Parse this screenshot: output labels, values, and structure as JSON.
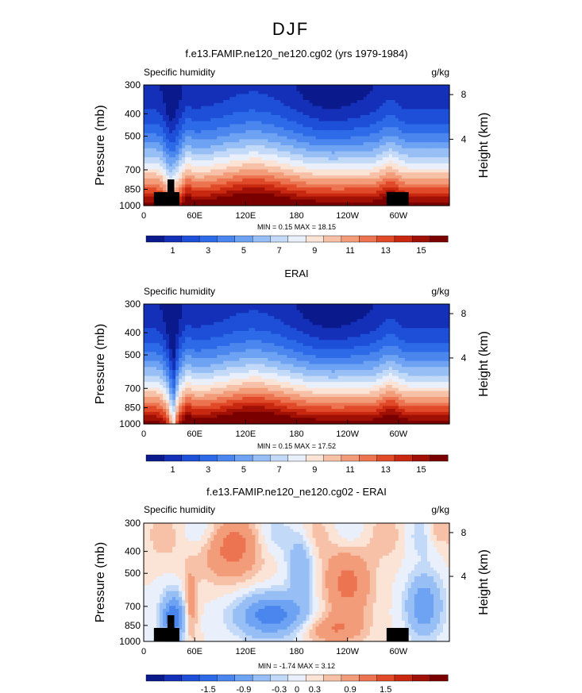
{
  "figure_title": "DJF",
  "chart_data": [
    {
      "type": "heatmap",
      "title": "f.e13.FAMIP.ne120_ne120.cg02 (yrs 1979-1984)",
      "left_label": "Specific humidity",
      "unit_label": "g/kg",
      "ylabel": "Pressure (mb)",
      "ylabel_right": "Height (km)",
      "y_ticks": [
        300,
        400,
        500,
        700,
        850,
        1000
      ],
      "y_ticks_right": [
        8,
        4
      ],
      "x_ticks": [
        "0",
        "60E",
        "120E",
        "180",
        "120W",
        "60W"
      ],
      "min_max_text": "MIN =    0.15   MAX =   18.15",
      "min": 0.15,
      "max": 18.15,
      "colorbar_labels": [
        "1",
        "3",
        "5",
        "7",
        "9",
        "11",
        "13",
        "15"
      ],
      "colorbar_levels": [
        0,
        1,
        2,
        3,
        4,
        5,
        6,
        7,
        8,
        9,
        10,
        11,
        12,
        13,
        14,
        15,
        16
      ],
      "field": "absolute",
      "surface_mask": true
    },
    {
      "type": "heatmap",
      "title": "ERAI",
      "left_label": "Specific humidity",
      "unit_label": "g/kg",
      "ylabel": "Pressure (mb)",
      "ylabel_right": "Height (km)",
      "y_ticks": [
        300,
        400,
        500,
        700,
        850,
        1000
      ],
      "y_ticks_right": [
        8,
        4
      ],
      "x_ticks": [
        "0",
        "60E",
        "120E",
        "180",
        "120W",
        "60W"
      ],
      "min_max_text": "MIN =    0.15   MAX =   17.52",
      "min": 0.15,
      "max": 17.52,
      "colorbar_labels": [
        "1",
        "3",
        "5",
        "7",
        "9",
        "11",
        "13",
        "15"
      ],
      "colorbar_levels": [
        0,
        1,
        2,
        3,
        4,
        5,
        6,
        7,
        8,
        9,
        10,
        11,
        12,
        13,
        14,
        15,
        16
      ],
      "field": "absolute",
      "surface_mask": false
    },
    {
      "type": "heatmap",
      "title": "f.e13.FAMIP.ne120_ne120.cg02 - ERAI",
      "left_label": "Specific humidity",
      "unit_label": "g/kg",
      "ylabel": "Pressure (mb)",
      "ylabel_right": "Height (km)",
      "y_ticks": [
        300,
        400,
        500,
        700,
        850,
        1000
      ],
      "y_ticks_right": [
        8,
        4
      ],
      "x_ticks": [
        "0",
        "60E",
        "120E",
        "180",
        "120W",
        "60W"
      ],
      "min_max_text": "MIN =   -1.74   MAX =    3.12",
      "min": -1.74,
      "max": 3.12,
      "colorbar_labels": [
        "-1.5",
        "-0.9",
        "-0.3",
        "0",
        "0.3",
        "0.9",
        "1.5"
      ],
      "colorbar_levels": [
        -2.1,
        -1.8,
        -1.5,
        -1.2,
        -0.9,
        -0.6,
        -0.3,
        -0.15,
        0,
        0.15,
        0.3,
        0.6,
        0.9,
        1.2,
        1.5,
        1.8,
        2.1
      ],
      "field": "difference",
      "surface_mask": true
    }
  ],
  "colors": {
    "palette": [
      "#0a1a8c",
      "#1530b8",
      "#1d4fd8",
      "#2c6ae8",
      "#4a86ee",
      "#6ea2f2",
      "#97bff5",
      "#c2d9f8",
      "#eaf0fb",
      "#fbe3d6",
      "#f7c1a8",
      "#f29c7a",
      "#ec7450",
      "#e04a28",
      "#c82810",
      "#a01005",
      "#7a0000"
    ],
    "mask": "#000000"
  }
}
